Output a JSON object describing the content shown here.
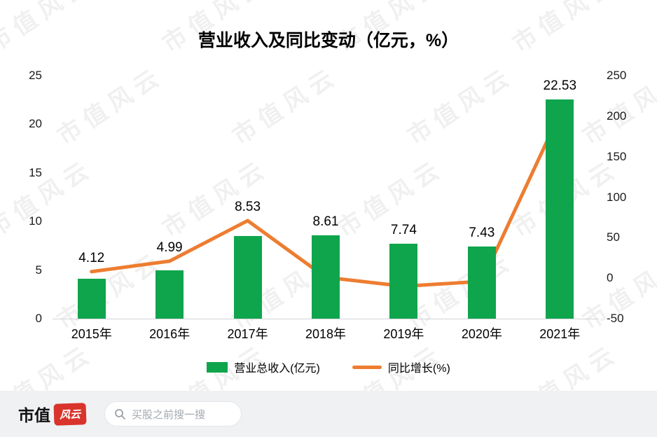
{
  "chart_data": {
    "type": "combo",
    "title": "营业收入及同比变动（亿元，%）",
    "categories": [
      "2015年",
      "2016年",
      "2017年",
      "2018年",
      "2019年",
      "2020年",
      "2021年"
    ],
    "series": [
      {
        "name": "营业总收入(亿元)",
        "type": "bar",
        "axis": "left",
        "color": "#0fa54c",
        "values": [
          4.12,
          4.99,
          8.53,
          8.61,
          7.74,
          7.43,
          22.53
        ]
      },
      {
        "name": "同比增长(%)",
        "type": "line",
        "axis": "right",
        "color": "#ed7d31",
        "values": [
          8,
          21,
          71,
          1,
          -10,
          -4,
          203
        ]
      }
    ],
    "bar_labels": [
      "4.12",
      "4.99",
      "8.53",
      "8.61",
      "7.74",
      "7.43",
      "22.53"
    ],
    "left_axis": {
      "min": 0,
      "max": 25,
      "ticks": [
        25,
        20,
        15,
        10,
        5,
        0
      ]
    },
    "right_axis": {
      "min": -50,
      "max": 250,
      "ticks": [
        250,
        200,
        150,
        100,
        50,
        0,
        -50
      ]
    },
    "legend": [
      "营业总收入(亿元)",
      "同比增长(%)"
    ],
    "legend_position": "bottom",
    "grid": false
  },
  "watermark": {
    "text": "市值风云"
  },
  "footer": {
    "brand_black": "市值",
    "brand_red": "风云",
    "brand_color": "#d9342b",
    "search_placeholder": "买股之前搜一搜"
  }
}
